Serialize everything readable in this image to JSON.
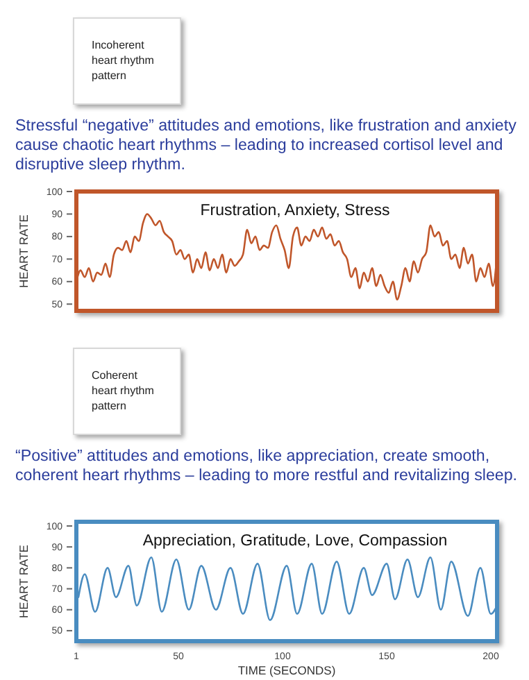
{
  "chart_data": [
    {
      "type": "line",
      "title": "Incoherent heart rhythm pattern",
      "subtitle": "Stressful “negative” attitudes and emotions, like frustration and anxiety cause chaotic heart rhythms – leading to increased cortisol level and disruptive sleep rhythm.",
      "ylabel": "HEART RATE",
      "annotations": [
        "Frustration, Anxiety, Stress"
      ],
      "xlim": [
        1,
        203
      ],
      "ylim": [
        47,
        100
      ],
      "yticks": [
        50,
        60,
        70,
        80,
        90,
        100
      ],
      "tick_labels": "y",
      "grid": false,
      "marker": "none",
      "line_style": "solid",
      "series": [
        {
          "color": "#c0562a",
          "x": [
            1,
            3,
            5,
            7,
            9,
            11,
            13,
            15,
            17,
            19,
            21,
            23,
            25,
            27,
            29,
            31,
            33,
            35,
            37,
            39,
            41,
            43,
            45,
            47,
            49,
            51,
            53,
            55,
            57,
            59,
            61,
            63,
            65,
            67,
            69,
            71,
            73,
            75,
            77,
            79,
            81,
            83,
            85,
            87,
            89,
            91,
            93,
            95,
            97,
            99,
            101,
            103,
            105,
            107,
            109,
            111,
            113,
            115,
            117,
            119,
            121,
            123,
            125,
            127,
            129,
            131,
            133,
            135,
            137,
            139,
            141,
            143,
            145,
            147,
            149,
            151,
            153,
            155,
            157,
            159,
            161,
            163,
            165,
            167,
            169,
            171,
            173,
            175,
            177,
            179,
            181,
            183,
            185,
            187,
            189,
            191,
            193,
            195,
            197,
            199,
            201,
            203
          ],
          "values": [
            60,
            65,
            62,
            66,
            60,
            64,
            63,
            68,
            62,
            72,
            75,
            74,
            78,
            73,
            80,
            78,
            86,
            90,
            88,
            85,
            87,
            82,
            80,
            78,
            72,
            74,
            70,
            72,
            64,
            70,
            66,
            73,
            65,
            70,
            66,
            72,
            64,
            70,
            67,
            69,
            72,
            83,
            77,
            80,
            74,
            76,
            75,
            82,
            85,
            79,
            74,
            66,
            80,
            84,
            76,
            80,
            78,
            83,
            80,
            84,
            79,
            81,
            76,
            78,
            73,
            70,
            62,
            66,
            57,
            64,
            60,
            66,
            58,
            63,
            58,
            55,
            60,
            52,
            58,
            66,
            60,
            69,
            64,
            70,
            73,
            85,
            80,
            82,
            76,
            78,
            70,
            72,
            66,
            75,
            68,
            72,
            60,
            66,
            62,
            68,
            58,
            72
          ]
        }
      ]
    },
    {
      "type": "line",
      "title": "Coherent heart rhythm pattern",
      "subtitle": "“Positive” attitudes and emotions, like appreciation, create smooth, coherent heart rhythms – leading to more restful and revitalizing sleep.",
      "ylabel": "HEART RATE",
      "xlabel": "TIME (SECONDS)",
      "annotations": [
        "Appreciation, Gratitude, Love, Compassion"
      ],
      "xlim": [
        1,
        203
      ],
      "ylim": [
        45,
        102
      ],
      "xticks": [
        1,
        50,
        100,
        150,
        200
      ],
      "yticks": [
        50,
        60,
        70,
        80,
        90,
        100
      ],
      "grid": false,
      "marker": "none",
      "line_style": "solid",
      "series": [
        {
          "color": "#4a8cc0",
          "x": [
            2,
            5,
            10,
            16,
            20,
            26,
            30,
            37,
            42,
            49,
            55,
            61,
            68,
            75,
            81,
            88,
            94,
            102,
            107,
            114,
            119,
            126,
            132,
            139,
            143,
            150,
            154,
            160,
            165,
            171,
            176,
            181,
            189,
            195,
            200,
            203
          ],
          "values": [
            66,
            77,
            59,
            80,
            66,
            81,
            62,
            85,
            59,
            84,
            60,
            81,
            60,
            80,
            58,
            82,
            55,
            81,
            58,
            82,
            58,
            83,
            58,
            80,
            67,
            82,
            65,
            84,
            66,
            85,
            60,
            83,
            57,
            80,
            58,
            62
          ]
        }
      ]
    }
  ]
}
